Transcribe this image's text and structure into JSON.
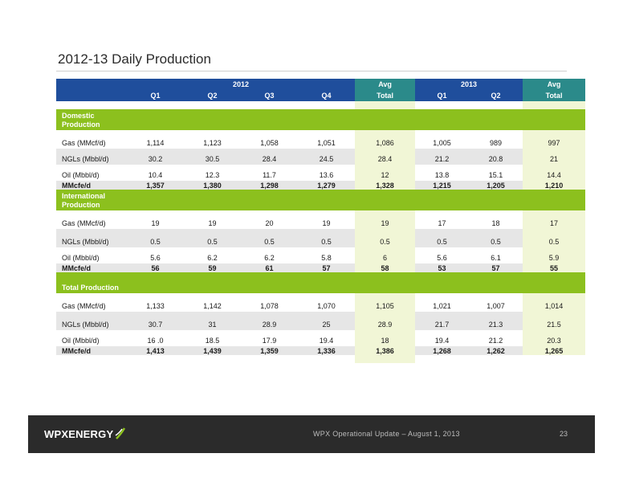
{
  "title": "2012-13 Daily Production",
  "header": {
    "year_2012": "2012",
    "year_2013": "2013",
    "avg": "Avg",
    "total": "Total",
    "q1": "Q1",
    "q2": "Q2",
    "q3": "Q3",
    "q4": "Q4"
  },
  "sections": {
    "domestic": {
      "label": "Domestic Production",
      "gas": [
        "Gas (MMcf/d)",
        "1,114",
        "1,123",
        "1,058",
        "1,051",
        "1,086",
        "1,005",
        "989",
        "997"
      ],
      "ngls": [
        "NGLs (Mbbl/d)",
        "30.2",
        "30.5",
        "28.4",
        "24.5",
        "28.4",
        "21.2",
        "20.8",
        "21"
      ],
      "oil": [
        "Oil (Mbbl/d)",
        "10.4",
        "12.3",
        "11.7",
        "13.6",
        "12",
        "13.8",
        "15.1",
        "14.4"
      ],
      "mmcfe": [
        "MMcfe/d",
        "1,357",
        "1,380",
        "1,298",
        "1,279",
        "1,328",
        "1,215",
        "1,205",
        "1,210"
      ]
    },
    "international": {
      "label": "International Production",
      "gas": [
        "Gas (MMcf/d)",
        "19",
        "19",
        "20",
        "19",
        "19",
        "17",
        "18",
        "17"
      ],
      "ngls": [
        "NGLs (Mbbl/d)",
        "0.5",
        "0.5",
        "0.5",
        "0.5",
        "0.5",
        "0.5",
        "0.5",
        "0.5"
      ],
      "oil": [
        "Oil (Mbbl/d)",
        "5.6",
        "6.2",
        "6.2",
        "5.8",
        "6",
        "5.6",
        "6.1",
        "5.9"
      ],
      "mmcfe": [
        "MMcfe/d",
        "56",
        "59",
        "61",
        "57",
        "58",
        "53",
        "57",
        "55"
      ]
    },
    "total": {
      "label": "Total Production",
      "gas": [
        "Gas (MMcf/d)",
        "1,133",
        "1,142",
        "1,078",
        "1,070",
        "1,105",
        "1,021",
        "1,007",
        "1,014"
      ],
      "ngls": [
        "NGLs (Mbbl/d)",
        "30.7",
        "31",
        "28.9",
        "25",
        "28.9",
        "21.7",
        "21.3",
        "21.5"
      ],
      "oil": [
        "Oil (Mbbl/d)",
        "16 .0",
        "18.5",
        "17.9",
        "19.4",
        "18",
        "19.4",
        "21.2",
        "20.3"
      ],
      "mmcfe": [
        "MMcfe/d",
        "1,413",
        "1,439",
        "1,359",
        "1,336",
        "1,386",
        "1,268",
        "1,262",
        "1,265"
      ]
    }
  },
  "footer": {
    "logo": "WPXENERGY",
    "text": "WPX Operational Update – August 1, 2013",
    "page": "23"
  },
  "colors": {
    "header_blue": "#1f4e9c",
    "header_teal": "#2b8a8a",
    "section_green": "#8cc01e",
    "avg_column": "#f1f6d6"
  }
}
